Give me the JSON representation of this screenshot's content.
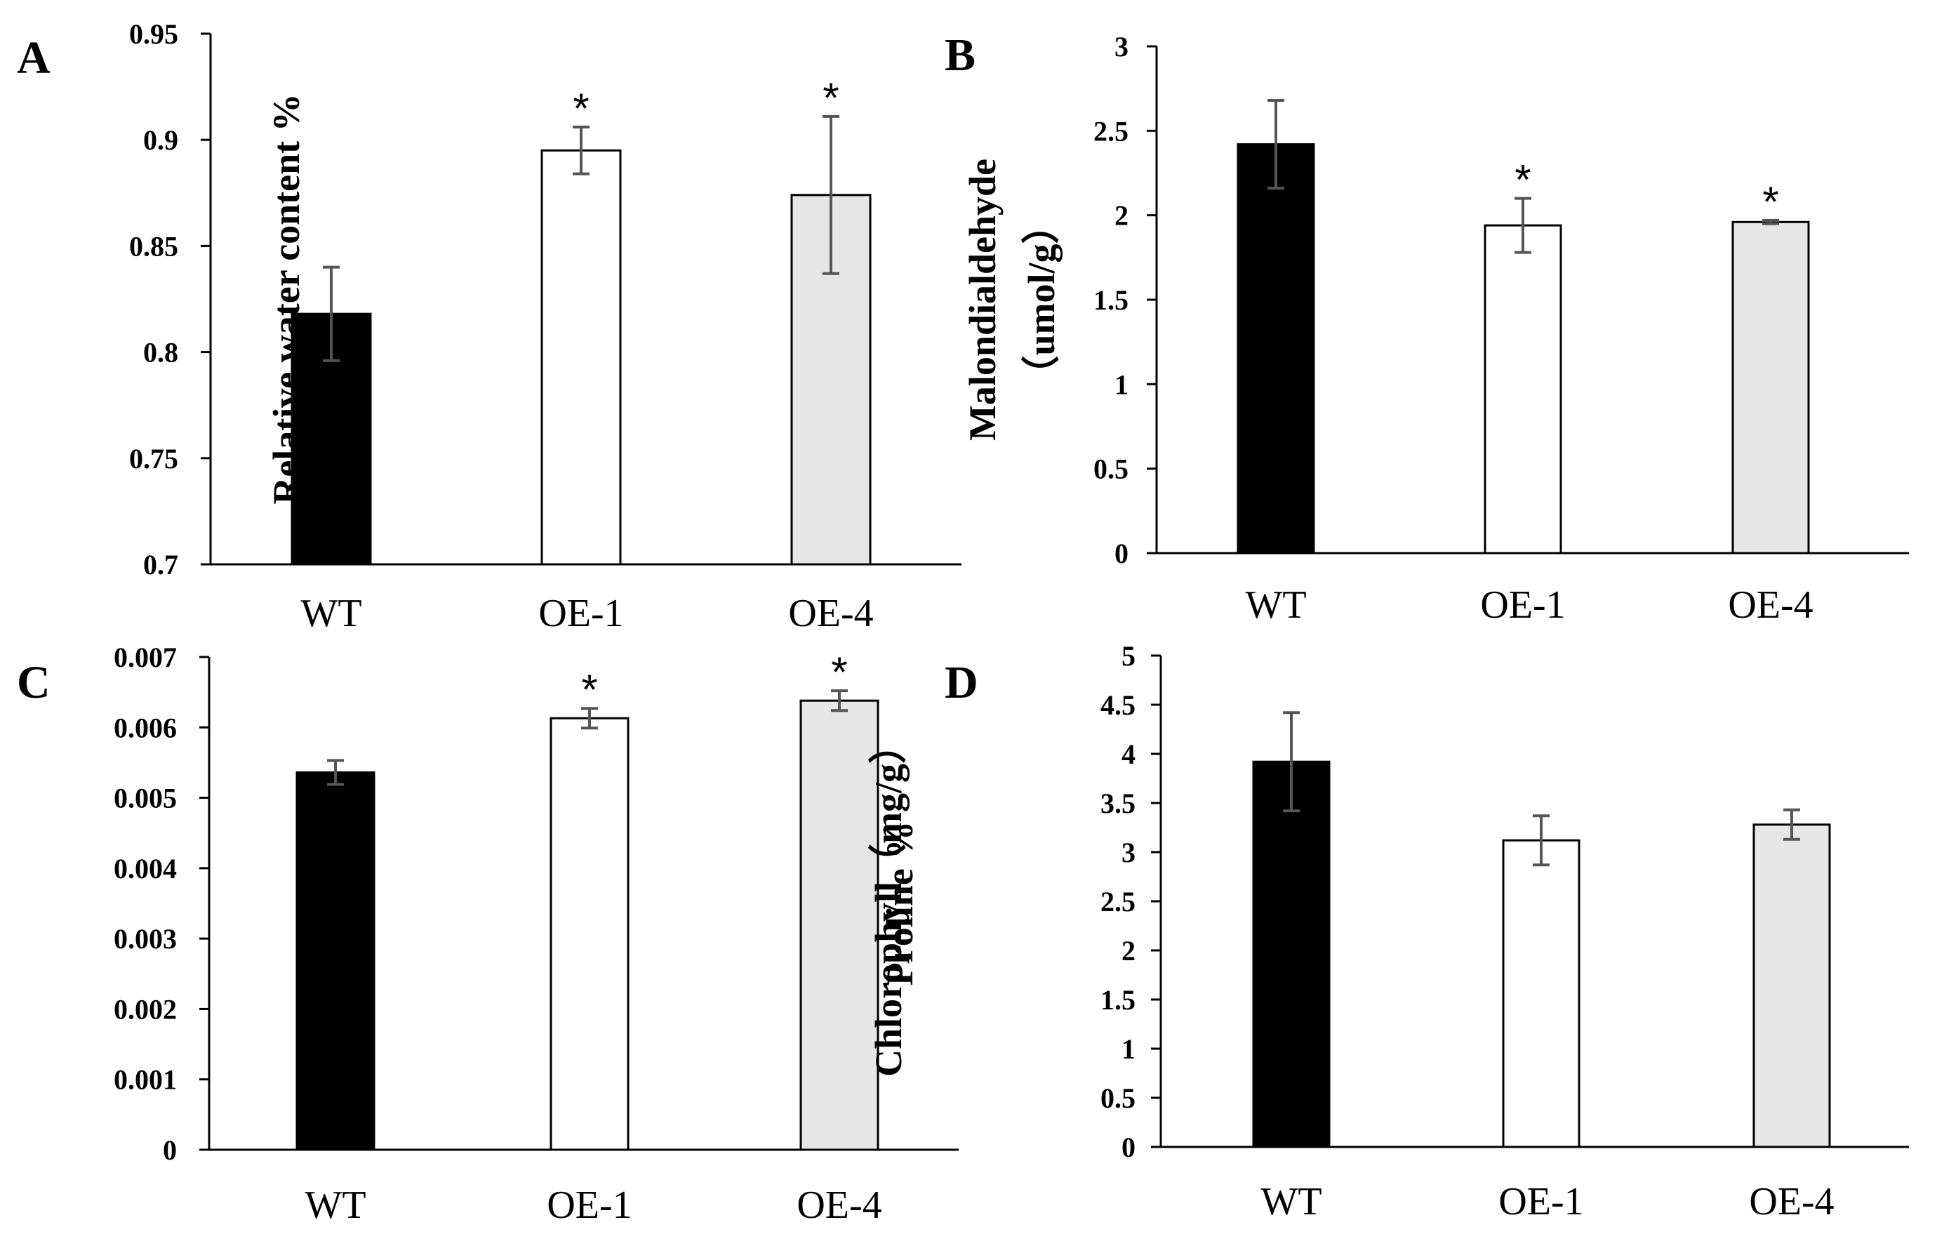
{
  "chart_data": [
    {
      "type": "bar",
      "panel": "A",
      "ylabel": "Relative water content %",
      "ylim": [
        0.7,
        0.95
      ],
      "yticks": [
        0.7,
        0.75,
        0.8,
        0.85,
        0.9,
        0.95
      ],
      "ytick_labels": [
        "0.7",
        "0.75",
        "0.8",
        "0.85",
        "0.9",
        "0.95"
      ],
      "categories": [
        "WT",
        "OE-1",
        "OE-4"
      ],
      "values": [
        0.818,
        0.895,
        0.874
      ],
      "errors": [
        0.022,
        0.011,
        0.037
      ],
      "significance": [
        "",
        "*",
        "*"
      ],
      "colors": [
        "#000000",
        "#ffffff",
        "#e6e6e6"
      ]
    },
    {
      "type": "bar",
      "panel": "B",
      "ylabel": "Malondialdehyde（umol/g）",
      "ylabel_lines": [
        "Malondialdehyde",
        "（umol/g）"
      ],
      "ylim": [
        0,
        3
      ],
      "yticks": [
        0,
        0.5,
        1,
        1.5,
        2,
        2.5,
        3
      ],
      "ytick_labels": [
        "0",
        "0.5",
        "1",
        "1.5",
        "2",
        "2.5",
        "3"
      ],
      "categories": [
        "WT",
        "OE-1",
        "OE-4"
      ],
      "values": [
        2.42,
        1.94,
        1.96
      ],
      "errors": [
        0.26,
        0.16,
        0.01
      ],
      "significance": [
        "",
        "*",
        "*"
      ],
      "colors": [
        "#000000",
        "#ffffff",
        "#e6e6e6"
      ]
    },
    {
      "type": "bar",
      "panel": "C",
      "ylabel": "Proline %",
      "ylim": [
        0,
        0.007
      ],
      "yticks": [
        0,
        0.001,
        0.002,
        0.003,
        0.004,
        0.005,
        0.006,
        0.007
      ],
      "ytick_labels": [
        "0",
        "0.001",
        "0.002",
        "0.003",
        "0.004",
        "0.005",
        "0.006",
        "0.007"
      ],
      "categories": [
        "WT",
        "OE-1",
        "OE-4"
      ],
      "values": [
        0.00536,
        0.00613,
        0.00638
      ],
      "errors": [
        0.00017,
        0.00014,
        0.00014
      ],
      "significance": [
        "",
        "*",
        "*"
      ],
      "colors": [
        "#000000",
        "#ffffff",
        "#e6e6e6"
      ]
    },
    {
      "type": "bar",
      "panel": "D",
      "ylabel": "Chlorophyll（mg/g）",
      "ylim": [
        0,
        5
      ],
      "yticks": [
        0,
        0.5,
        1,
        1.5,
        2,
        2.5,
        3,
        3.5,
        4,
        4.5,
        5
      ],
      "ytick_labels": [
        "0",
        "0.5",
        "1",
        "1.5",
        "2",
        "2.5",
        "3",
        "3.5",
        "4",
        "4.5",
        "5"
      ],
      "categories": [
        "WT",
        "OE-1",
        "OE-4"
      ],
      "values": [
        3.92,
        3.12,
        3.28
      ],
      "errors": [
        0.5,
        0.25,
        0.15
      ],
      "significance": [
        "",
        "",
        ""
      ],
      "colors": [
        "#000000",
        "#ffffff",
        "#e6e6e6"
      ]
    }
  ]
}
